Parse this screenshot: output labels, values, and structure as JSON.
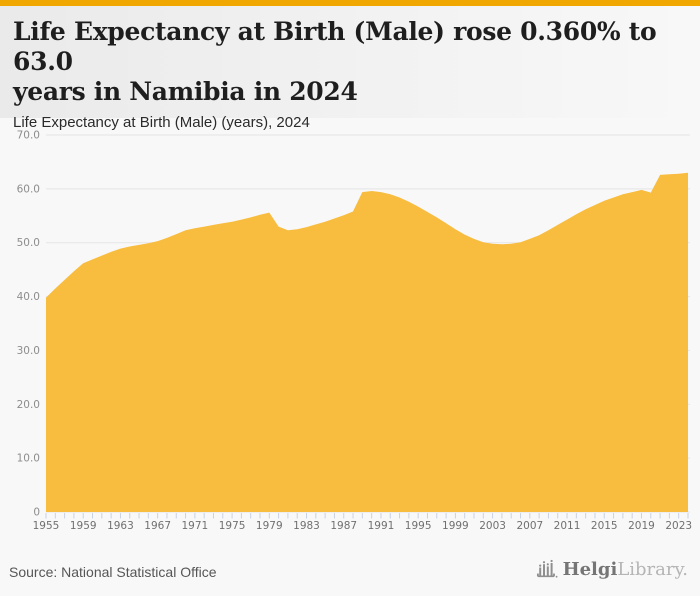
{
  "colors": {
    "topbar": "#f0a800",
    "area": "#f8bc3e",
    "grid": "#e5e5e5",
    "tick": "#c8d2e2",
    "y_label": "#8d8d8d",
    "x_label": "#707070"
  },
  "header": {
    "title_line1": "Life Expectancy at Birth (Male) rose 0.360% to 63.0",
    "title_line2": "years in Namibia in 2024",
    "subtitle": "Life Expectancy at Birth (Male) (years), 2024"
  },
  "footer": {
    "source": "Source: National Statistical Office",
    "logo_icon": "bar-chart-skyline-icon",
    "logo_text_primary": "Helgi",
    "logo_text_secondary": "Library."
  },
  "chart_data": {
    "type": "area",
    "title": "Life Expectancy at Birth (Male) rose 0.360% to 63.0 years in Namibia in 2024",
    "subtitle": "Life Expectancy at Birth (Male) (years), 2024",
    "xlabel": "",
    "ylabel": "",
    "ylim": [
      0,
      70
    ],
    "ytick_step": 10,
    "ytick_labels": [
      "0",
      "10.0",
      "20.0",
      "30.0",
      "40.0",
      "50.0",
      "60.0",
      "70.0"
    ],
    "xtick_labels": [
      "1955",
      "1959",
      "1963",
      "1967",
      "1971",
      "1975",
      "1979",
      "1983",
      "1987",
      "1991",
      "1995",
      "1999",
      "2003",
      "2007",
      "2011",
      "2015",
      "2019",
      "2023"
    ],
    "grid": true,
    "legend": "none",
    "x": [
      1955,
      1956,
      1957,
      1958,
      1959,
      1960,
      1961,
      1962,
      1963,
      1964,
      1965,
      1966,
      1967,
      1968,
      1969,
      1970,
      1971,
      1972,
      1973,
      1974,
      1975,
      1976,
      1977,
      1978,
      1979,
      1980,
      1981,
      1982,
      1983,
      1984,
      1985,
      1986,
      1987,
      1988,
      1989,
      1990,
      1991,
      1992,
      1993,
      1994,
      1995,
      1996,
      1997,
      1998,
      1999,
      2000,
      2001,
      2002,
      2003,
      2004,
      2005,
      2006,
      2007,
      2008,
      2009,
      2010,
      2011,
      2012,
      2013,
      2014,
      2015,
      2016,
      2017,
      2018,
      2019,
      2020,
      2021,
      2022,
      2023,
      2024
    ],
    "values": [
      39.8,
      41.5,
      43.1,
      44.7,
      46.2,
      46.9,
      47.6,
      48.3,
      48.9,
      49.3,
      49.6,
      49.9,
      50.3,
      50.9,
      51.6,
      52.3,
      52.7,
      53.0,
      53.3,
      53.6,
      53.9,
      54.3,
      54.7,
      55.2,
      55.6,
      53.0,
      52.3,
      52.5,
      52.9,
      53.4,
      53.9,
      54.5,
      55.1,
      55.8,
      59.4,
      59.6,
      59.4,
      59.0,
      58.4,
      57.6,
      56.7,
      55.7,
      54.7,
      53.6,
      52.5,
      51.5,
      50.7,
      50.1,
      49.8,
      49.7,
      49.8,
      50.1,
      50.7,
      51.4,
      52.3,
      53.3,
      54.3,
      55.3,
      56.2,
      57.0,
      57.8,
      58.4,
      59.0,
      59.4,
      59.8,
      59.3,
      62.6,
      62.7,
      62.8,
      63.0
    ]
  }
}
